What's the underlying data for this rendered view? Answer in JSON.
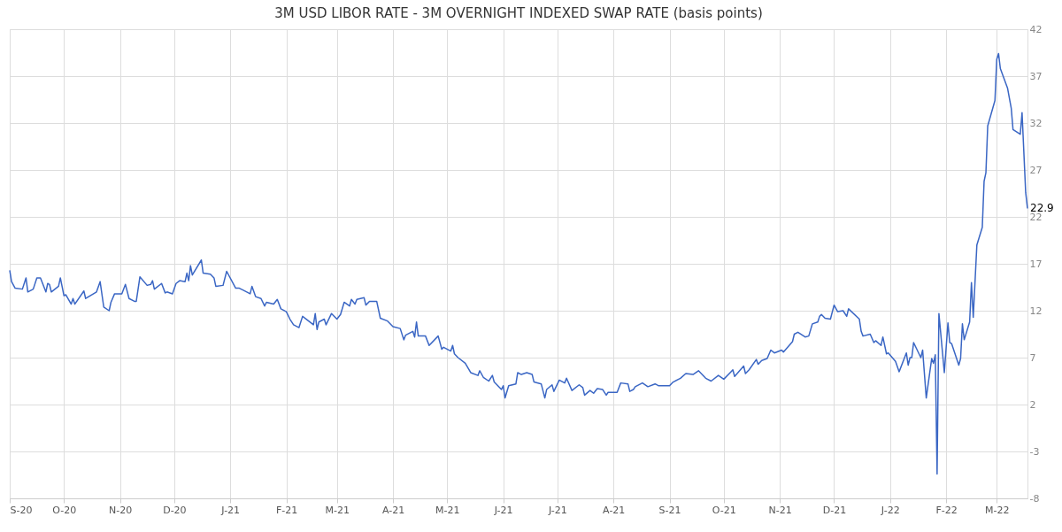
{
  "chart_data": {
    "type": "line",
    "title": "3M USD LIBOR RATE - 3M OVERNIGHT INDEXED SWAP RATE (basis points)",
    "x": [
      "2020-09-01",
      "2020-09-02",
      "2020-09-04",
      "2020-09-08",
      "2020-09-10",
      "2020-09-11",
      "2020-09-14",
      "2020-09-16",
      "2020-09-18",
      "2020-09-21",
      "2020-09-22",
      "2020-09-23",
      "2020-09-24",
      "2020-09-28",
      "2020-09-29",
      "2020-10-01",
      "2020-10-02",
      "2020-10-05",
      "2020-10-06",
      "2020-10-07",
      "2020-10-12",
      "2020-10-13",
      "2020-10-19",
      "2020-10-21",
      "2020-10-23",
      "2020-10-26",
      "2020-10-27",
      "2020-10-29",
      "2020-11-02",
      "2020-11-04",
      "2020-11-06",
      "2020-11-09",
      "2020-11-10",
      "2020-11-12",
      "2020-11-16",
      "2020-11-18",
      "2020-11-19",
      "2020-11-20",
      "2020-11-24",
      "2020-11-26",
      "2020-11-27",
      "2020-11-30",
      "2020-12-02",
      "2020-12-04",
      "2020-12-07",
      "2020-12-08",
      "2020-12-09",
      "2020-12-10",
      "2020-12-11",
      "2020-12-16",
      "2020-12-17",
      "2020-12-21",
      "2020-12-23",
      "2020-12-24",
      "2020-12-28",
      "2020-12-30",
      "2021-01-04",
      "2021-01-06",
      "2021-01-08",
      "2021-01-12",
      "2021-01-13",
      "2021-01-15",
      "2021-01-18",
      "2021-01-20",
      "2021-01-21",
      "2021-01-25",
      "2021-01-27",
      "2021-01-29",
      "2021-02-01",
      "2021-02-03",
      "2021-02-05",
      "2021-02-08",
      "2021-02-10",
      "2021-02-16",
      "2021-02-17",
      "2021-02-18",
      "2021-02-19",
      "2021-02-22",
      "2021-02-23",
      "2021-02-26",
      "2021-03-01",
      "2021-03-03",
      "2021-03-05",
      "2021-03-08",
      "2021-03-09",
      "2021-03-11",
      "2021-03-12",
      "2021-03-16",
      "2021-03-17",
      "2021-03-19",
      "2021-03-23",
      "2021-03-25",
      "2021-03-29",
      "2021-04-01",
      "2021-04-05",
      "2021-04-07",
      "2021-04-08",
      "2021-04-12",
      "2021-04-13",
      "2021-04-14",
      "2021-04-15",
      "2021-04-19",
      "2021-04-21",
      "2021-04-26",
      "2021-04-28",
      "2021-04-29",
      "2021-05-03",
      "2021-05-04",
      "2021-05-05",
      "2021-05-07",
      "2021-05-11",
      "2021-05-14",
      "2021-05-18",
      "2021-05-19",
      "2021-05-21",
      "2021-05-24",
      "2021-05-26",
      "2021-05-27",
      "2021-05-31",
      "2021-06-01",
      "2021-06-02",
      "2021-06-04",
      "2021-06-08",
      "2021-06-09",
      "2021-06-11",
      "2021-06-14",
      "2021-06-17",
      "2021-06-18",
      "2021-06-22",
      "2021-06-24",
      "2021-06-25",
      "2021-06-28",
      "2021-06-29",
      "2021-07-02",
      "2021-07-05",
      "2021-07-06",
      "2021-07-09",
      "2021-07-13",
      "2021-07-15",
      "2021-07-16",
      "2021-07-19",
      "2021-07-21",
      "2021-07-23",
      "2021-07-26",
      "2021-07-28",
      "2021-07-29",
      "2021-08-03",
      "2021-08-05",
      "2021-08-09",
      "2021-08-10",
      "2021-08-12",
      "2021-08-13",
      "2021-08-17",
      "2021-08-20",
      "2021-08-24",
      "2021-08-26",
      "2021-09-01",
      "2021-09-03",
      "2021-09-07",
      "2021-09-10",
      "2021-09-14",
      "2021-09-17",
      "2021-09-21",
      "2021-09-24",
      "2021-09-28",
      "2021-10-01",
      "2021-10-05",
      "2021-10-06",
      "2021-10-07",
      "2021-10-12",
      "2021-10-13",
      "2021-10-15",
      "2021-10-19",
      "2021-10-20",
      "2021-10-22",
      "2021-10-25",
      "2021-10-27",
      "2021-10-29",
      "2021-11-02",
      "2021-11-03",
      "2021-11-08",
      "2021-11-09",
      "2021-11-11",
      "2021-11-15",
      "2021-11-17",
      "2021-11-19",
      "2021-11-22",
      "2021-11-23",
      "2021-11-24",
      "2021-11-26",
      "2021-11-29",
      "2021-12-01",
      "2021-12-03",
      "2021-12-06",
      "2021-12-08",
      "2021-12-09",
      "2021-12-15",
      "2021-12-16",
      "2021-12-17",
      "2021-12-21",
      "2021-12-23",
      "2021-12-24",
      "2021-12-27",
      "2021-12-28",
      "2021-12-30",
      "2021-12-31",
      "2022-01-04",
      "2022-01-06",
      "2022-01-10",
      "2022-01-11",
      "2022-01-12",
      "2022-01-13",
      "2022-01-14",
      "2022-01-18",
      "2022-01-19",
      "2022-01-21",
      "2022-01-24",
      "2022-01-25",
      "2022-01-26",
      "2022-01-27",
      "2022-01-28",
      "2022-01-31",
      "2022-02-02",
      "2022-02-03",
      "2022-02-04",
      "2022-02-08",
      "2022-02-09",
      "2022-02-10",
      "2022-02-11",
      "2022-02-14",
      "2022-02-15",
      "2022-02-16",
      "2022-02-18",
      "2022-02-21",
      "2022-02-22",
      "2022-02-23",
      "2022-02-24",
      "2022-02-28",
      "2022-03-01",
      "2022-03-02",
      "2022-03-03",
      "2022-03-07",
      "2022-03-09",
      "2022-03-10",
      "2022-03-14",
      "2022-03-15",
      "2022-03-17",
      "2022-03-18"
    ],
    "series": [
      {
        "color": "#3a66c4",
        "values": [
          16.3,
          15.1,
          14.4,
          14.3,
          15.5,
          14.0,
          14.3,
          15.5,
          15.5,
          14.0,
          14.9,
          14.8,
          14.0,
          14.6,
          15.5,
          13.6,
          13.7,
          12.7,
          13.3,
          12.7,
          14.1,
          13.3,
          14.0,
          15.1,
          12.4,
          12.0,
          12.9,
          13.8,
          13.8,
          14.8,
          13.3,
          13.0,
          13.0,
          15.6,
          14.7,
          14.8,
          15.2,
          14.3,
          14.9,
          13.9,
          14.0,
          13.8,
          14.9,
          15.2,
          15.1,
          16.0,
          15.2,
          16.8,
          15.8,
          17.4,
          16.0,
          15.9,
          15.5,
          14.6,
          14.7,
          16.2,
          14.4,
          14.4,
          14.2,
          13.8,
          14.6,
          13.5,
          13.3,
          12.5,
          12.9,
          12.7,
          13.2,
          12.2,
          11.9,
          11.1,
          10.5,
          10.2,
          11.4,
          10.5,
          11.7,
          10.0,
          10.8,
          11.1,
          10.5,
          11.7,
          11.1,
          11.6,
          12.9,
          12.5,
          13.2,
          12.7,
          13.2,
          13.4,
          12.6,
          13.0,
          13.0,
          11.2,
          10.9,
          10.3,
          10.1,
          8.9,
          9.4,
          9.8,
          9.2,
          10.8,
          9.3,
          9.3,
          8.3,
          9.3,
          7.9,
          8.1,
          7.7,
          8.3,
          7.4,
          7.0,
          6.4,
          5.4,
          5.1,
          5.6,
          4.9,
          4.5,
          5.1,
          4.4,
          3.6,
          4.0,
          2.7,
          4.0,
          4.2,
          5.4,
          5.2,
          5.4,
          5.2,
          4.4,
          4.2,
          2.7,
          3.6,
          4.1,
          3.4,
          4.6,
          4.3,
          4.8,
          3.5,
          4.1,
          3.8,
          3.0,
          3.5,
          3.2,
          3.7,
          3.6,
          3.0,
          3.3,
          3.3,
          4.3,
          4.2,
          3.4,
          3.6,
          3.9,
          4.3,
          3.9,
          4.2,
          4.0,
          4.0,
          4.4,
          4.8,
          5.3,
          5.2,
          5.6,
          4.8,
          4.5,
          5.1,
          4.7,
          5.5,
          5.7,
          5.0,
          6.1,
          5.3,
          5.7,
          6.8,
          6.3,
          6.7,
          6.9,
          7.8,
          7.5,
          7.8,
          7.6,
          8.7,
          9.5,
          9.7,
          9.2,
          9.3,
          10.6,
          10.8,
          11.4,
          11.6,
          11.2,
          11.1,
          12.6,
          11.9,
          12.0,
          11.4,
          12.2,
          11.1,
          9.8,
          9.3,
          9.5,
          8.6,
          8.8,
          8.3,
          9.2,
          7.4,
          7.5,
          6.6,
          5.5,
          7.5,
          6.2,
          7.0,
          7.0,
          8.6,
          7.0,
          7.8,
          2.7,
          6.9,
          6.4,
          7.3,
          -5.4,
          11.7,
          5.4,
          10.7,
          8.6,
          8.5,
          6.2,
          6.9,
          10.6,
          8.9,
          10.8,
          15.0,
          11.3,
          19.0,
          20.9,
          25.8,
          26.7,
          31.7,
          34.4,
          38.8,
          39.4,
          37.8,
          35.7,
          33.6,
          31.3,
          30.8,
          33.1,
          24.6,
          22.9
        ]
      }
    ],
    "xlim": [
      "2020-09-01",
      "2022-03-18"
    ],
    "xticks": [
      {
        "value": "2020-09-01",
        "label": "S-20"
      },
      {
        "value": "2020-10-01",
        "label": "O-20"
      },
      {
        "value": "2020-11-01",
        "label": "N-20"
      },
      {
        "value": "2020-12-01",
        "label": "D-20"
      },
      {
        "value": "2021-01-01",
        "label": "J-21"
      },
      {
        "value": "2021-02-01",
        "label": "F-21"
      },
      {
        "value": "2021-03-01",
        "label": "M-21"
      },
      {
        "value": "2021-04-01",
        "label": "A-21"
      },
      {
        "value": "2021-05-01",
        "label": "M-21"
      },
      {
        "value": "2021-06-01",
        "label": "J-21"
      },
      {
        "value": "2021-07-01",
        "label": "J-21"
      },
      {
        "value": "2021-08-01",
        "label": "A-21"
      },
      {
        "value": "2021-09-01",
        "label": "S-21"
      },
      {
        "value": "2021-10-01",
        "label": "O-21"
      },
      {
        "value": "2021-11-01",
        "label": "N-21"
      },
      {
        "value": "2021-12-01",
        "label": "D-21"
      },
      {
        "value": "2022-01-01",
        "label": "J-22"
      },
      {
        "value": "2022-02-01",
        "label": "F-22"
      },
      {
        "value": "2022-03-01",
        "label": "M-22"
      }
    ],
    "ylim": [
      -8,
      42
    ],
    "yticks": [
      -8,
      -3,
      2,
      7,
      12,
      17,
      22,
      27,
      32,
      37,
      42
    ],
    "grid": true,
    "annotations": [
      {
        "text": "22.9",
        "x": "2022-03-18",
        "y": 22.9
      }
    ]
  }
}
